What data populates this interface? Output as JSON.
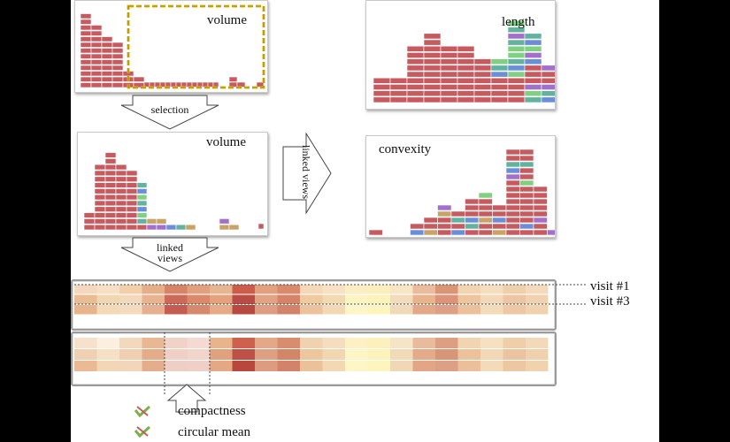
{
  "panels": {
    "volume_top": {
      "title": "volume"
    },
    "length": {
      "title": "length"
    },
    "volume_mid": {
      "title": "volume"
    },
    "convexity": {
      "title": "convexity"
    }
  },
  "arrows": {
    "selection": "selection",
    "linked_views_vertical": "linked views",
    "linked_views_down": [
      "linked",
      "views"
    ]
  },
  "visits": [
    "visit #1",
    "visit #3"
  ],
  "legend": [
    "compactness",
    "circular mean"
  ],
  "colors": {
    "red": "#c65a5f",
    "teal": "#62b2a0",
    "green": "#7fd081",
    "blue": "#6a8fd8",
    "purple": "#a46fc9",
    "tan": "#c9a266",
    "selection_border": "#e8b800",
    "check": "#7ab04a"
  }
}
